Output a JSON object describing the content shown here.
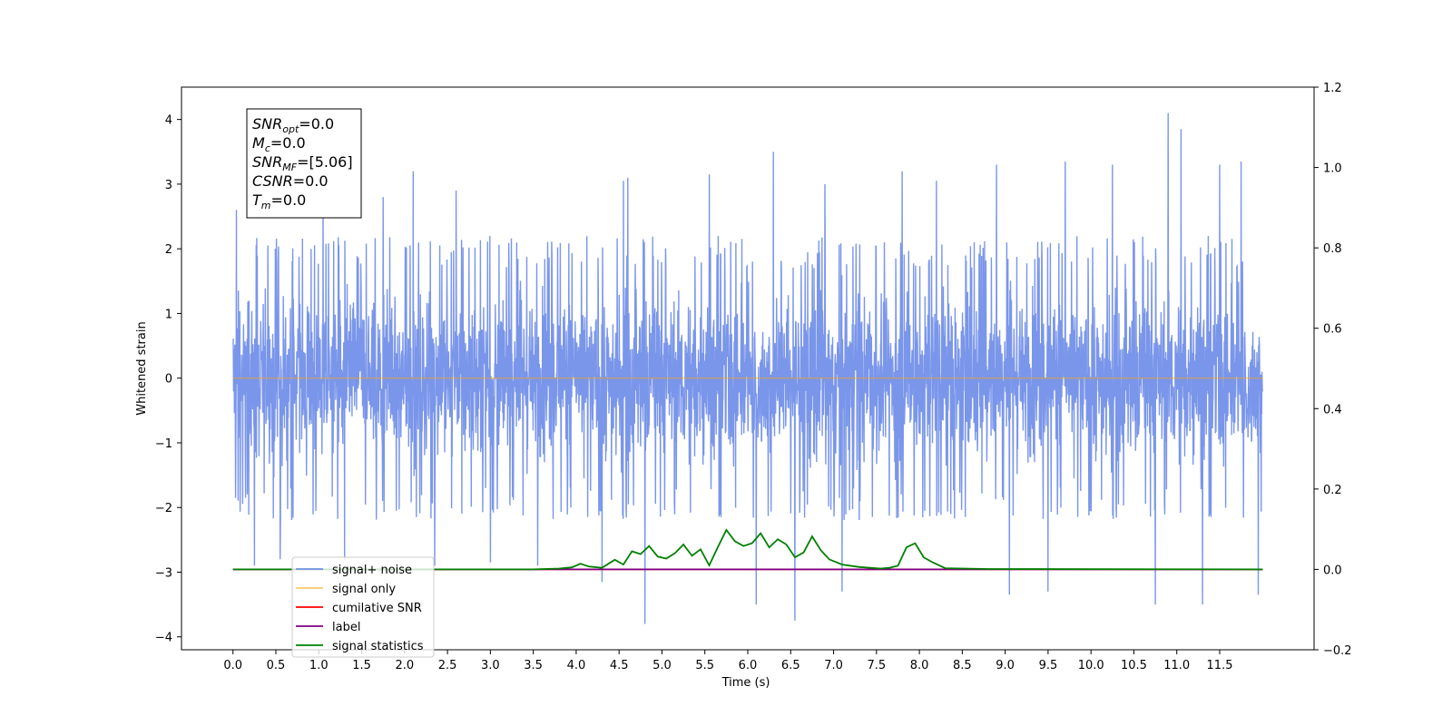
{
  "chart_data": {
    "type": "line",
    "xlabel": "Time (s)",
    "ylabel": "Whitened strain",
    "xlim": [
      -0.6,
      12.6
    ],
    "ylim": [
      -4.2,
      4.5
    ],
    "y2lim": [
      -0.2,
      1.2
    ],
    "x_ticks": [
      "0.0",
      "0.5",
      "1.0",
      "1.5",
      "2.0",
      "2.5",
      "3.0",
      "3.5",
      "4.0",
      "4.5",
      "5.0",
      "5.5",
      "6.0",
      "6.5",
      "7.0",
      "7.5",
      "8.0",
      "8.5",
      "9.0",
      "9.5",
      "10.0",
      "10.5",
      "11.0",
      "11.5"
    ],
    "y_ticks": [
      "4",
      "3",
      "2",
      "1",
      "0",
      "−1",
      "−2",
      "−3",
      "−4"
    ],
    "y2_ticks": [
      "1.2",
      "1.0",
      "0.8",
      "0.6",
      "0.4",
      "0.2",
      "0.0",
      "−0.2"
    ],
    "legend_position": "lower left",
    "info_box": [
      {
        "base": "SNR",
        "sub": "opt",
        "value": "=0.0"
      },
      {
        "base": "M",
        "sub": "c",
        "value": "=0.0"
      },
      {
        "base": "SNR",
        "sub": "MF",
        "value": "=[5.06]"
      },
      {
        "base": "CSNR",
        "sub": "",
        "value": "=0.0"
      },
      {
        "base": "T",
        "sub": "m",
        "value": "=0.0"
      }
    ],
    "series": [
      {
        "name": "signal+ noise",
        "color": "#4169e1",
        "axis": "left",
        "style": "noise",
        "x_range": [
          0.0,
          12.0
        ],
        "envelope": [
          -2.2,
          2.2
        ],
        "peaks": [
          [
            0.04,
            2.6
          ],
          [
            0.25,
            -2.9
          ],
          [
            0.55,
            -2.8
          ],
          [
            1.05,
            2.9
          ],
          [
            1.3,
            -2.8
          ],
          [
            1.75,
            2.8
          ],
          [
            2.1,
            3.2
          ],
          [
            2.35,
            -2.9
          ],
          [
            2.6,
            2.9
          ],
          [
            3.0,
            -2.85
          ],
          [
            3.55,
            -2.9
          ],
          [
            4.3,
            -3.15
          ],
          [
            4.55,
            3.05
          ],
          [
            4.6,
            3.1
          ],
          [
            4.8,
            -3.8
          ],
          [
            5.55,
            3.15
          ],
          [
            6.1,
            -3.5
          ],
          [
            6.3,
            3.5
          ],
          [
            6.55,
            -3.75
          ],
          [
            6.9,
            3.0
          ],
          [
            7.1,
            -3.3
          ],
          [
            7.8,
            3.2
          ],
          [
            8.2,
            3.05
          ],
          [
            8.9,
            3.3
          ],
          [
            9.05,
            -3.35
          ],
          [
            9.5,
            -3.3
          ],
          [
            9.7,
            3.35
          ],
          [
            10.25,
            3.3
          ],
          [
            10.75,
            -3.5
          ],
          [
            10.9,
            4.1
          ],
          [
            11.05,
            3.85
          ],
          [
            11.3,
            -3.5
          ],
          [
            11.5,
            3.3
          ],
          [
            11.75,
            3.35
          ],
          [
            11.95,
            -3.35
          ]
        ]
      },
      {
        "name": "signal only",
        "color": "#ffa500",
        "axis": "left",
        "x": [
          0.0,
          12.0
        ],
        "y": [
          0.0,
          0.0
        ]
      },
      {
        "name": "cumilative SNR",
        "color": "#ff0000",
        "axis": "right",
        "x": [
          0.0,
          12.0
        ],
        "y": [
          0.0,
          0.0
        ]
      },
      {
        "name": "label",
        "color": "#800080",
        "axis": "right",
        "x": [
          0.0,
          12.0
        ],
        "y": [
          0.0,
          0.0
        ]
      },
      {
        "name": "signal statistics",
        "color": "#008000",
        "axis": "right",
        "x": [
          0.0,
          3.5,
          3.8,
          3.95,
          4.05,
          4.15,
          4.3,
          4.45,
          4.55,
          4.65,
          4.75,
          4.85,
          4.95,
          5.05,
          5.15,
          5.25,
          5.35,
          5.45,
          5.55,
          5.65,
          5.75,
          5.85,
          5.95,
          6.05,
          6.15,
          6.25,
          6.35,
          6.45,
          6.55,
          6.65,
          6.75,
          6.85,
          6.95,
          7.1,
          7.3,
          7.55,
          7.65,
          7.75,
          7.85,
          7.95,
          8.05,
          8.15,
          8.3,
          8.8,
          12.0
        ],
        "y": [
          0.0,
          0.0,
          0.002,
          0.005,
          0.014,
          0.007,
          0.004,
          0.024,
          0.012,
          0.045,
          0.038,
          0.058,
          0.032,
          0.027,
          0.04,
          0.062,
          0.034,
          0.05,
          0.01,
          0.055,
          0.098,
          0.07,
          0.058,
          0.065,
          0.09,
          0.055,
          0.075,
          0.062,
          0.03,
          0.042,
          0.082,
          0.048,
          0.025,
          0.012,
          0.006,
          0.002,
          0.004,
          0.009,
          0.055,
          0.065,
          0.03,
          0.018,
          0.003,
          0.001,
          0.0
        ]
      }
    ]
  }
}
